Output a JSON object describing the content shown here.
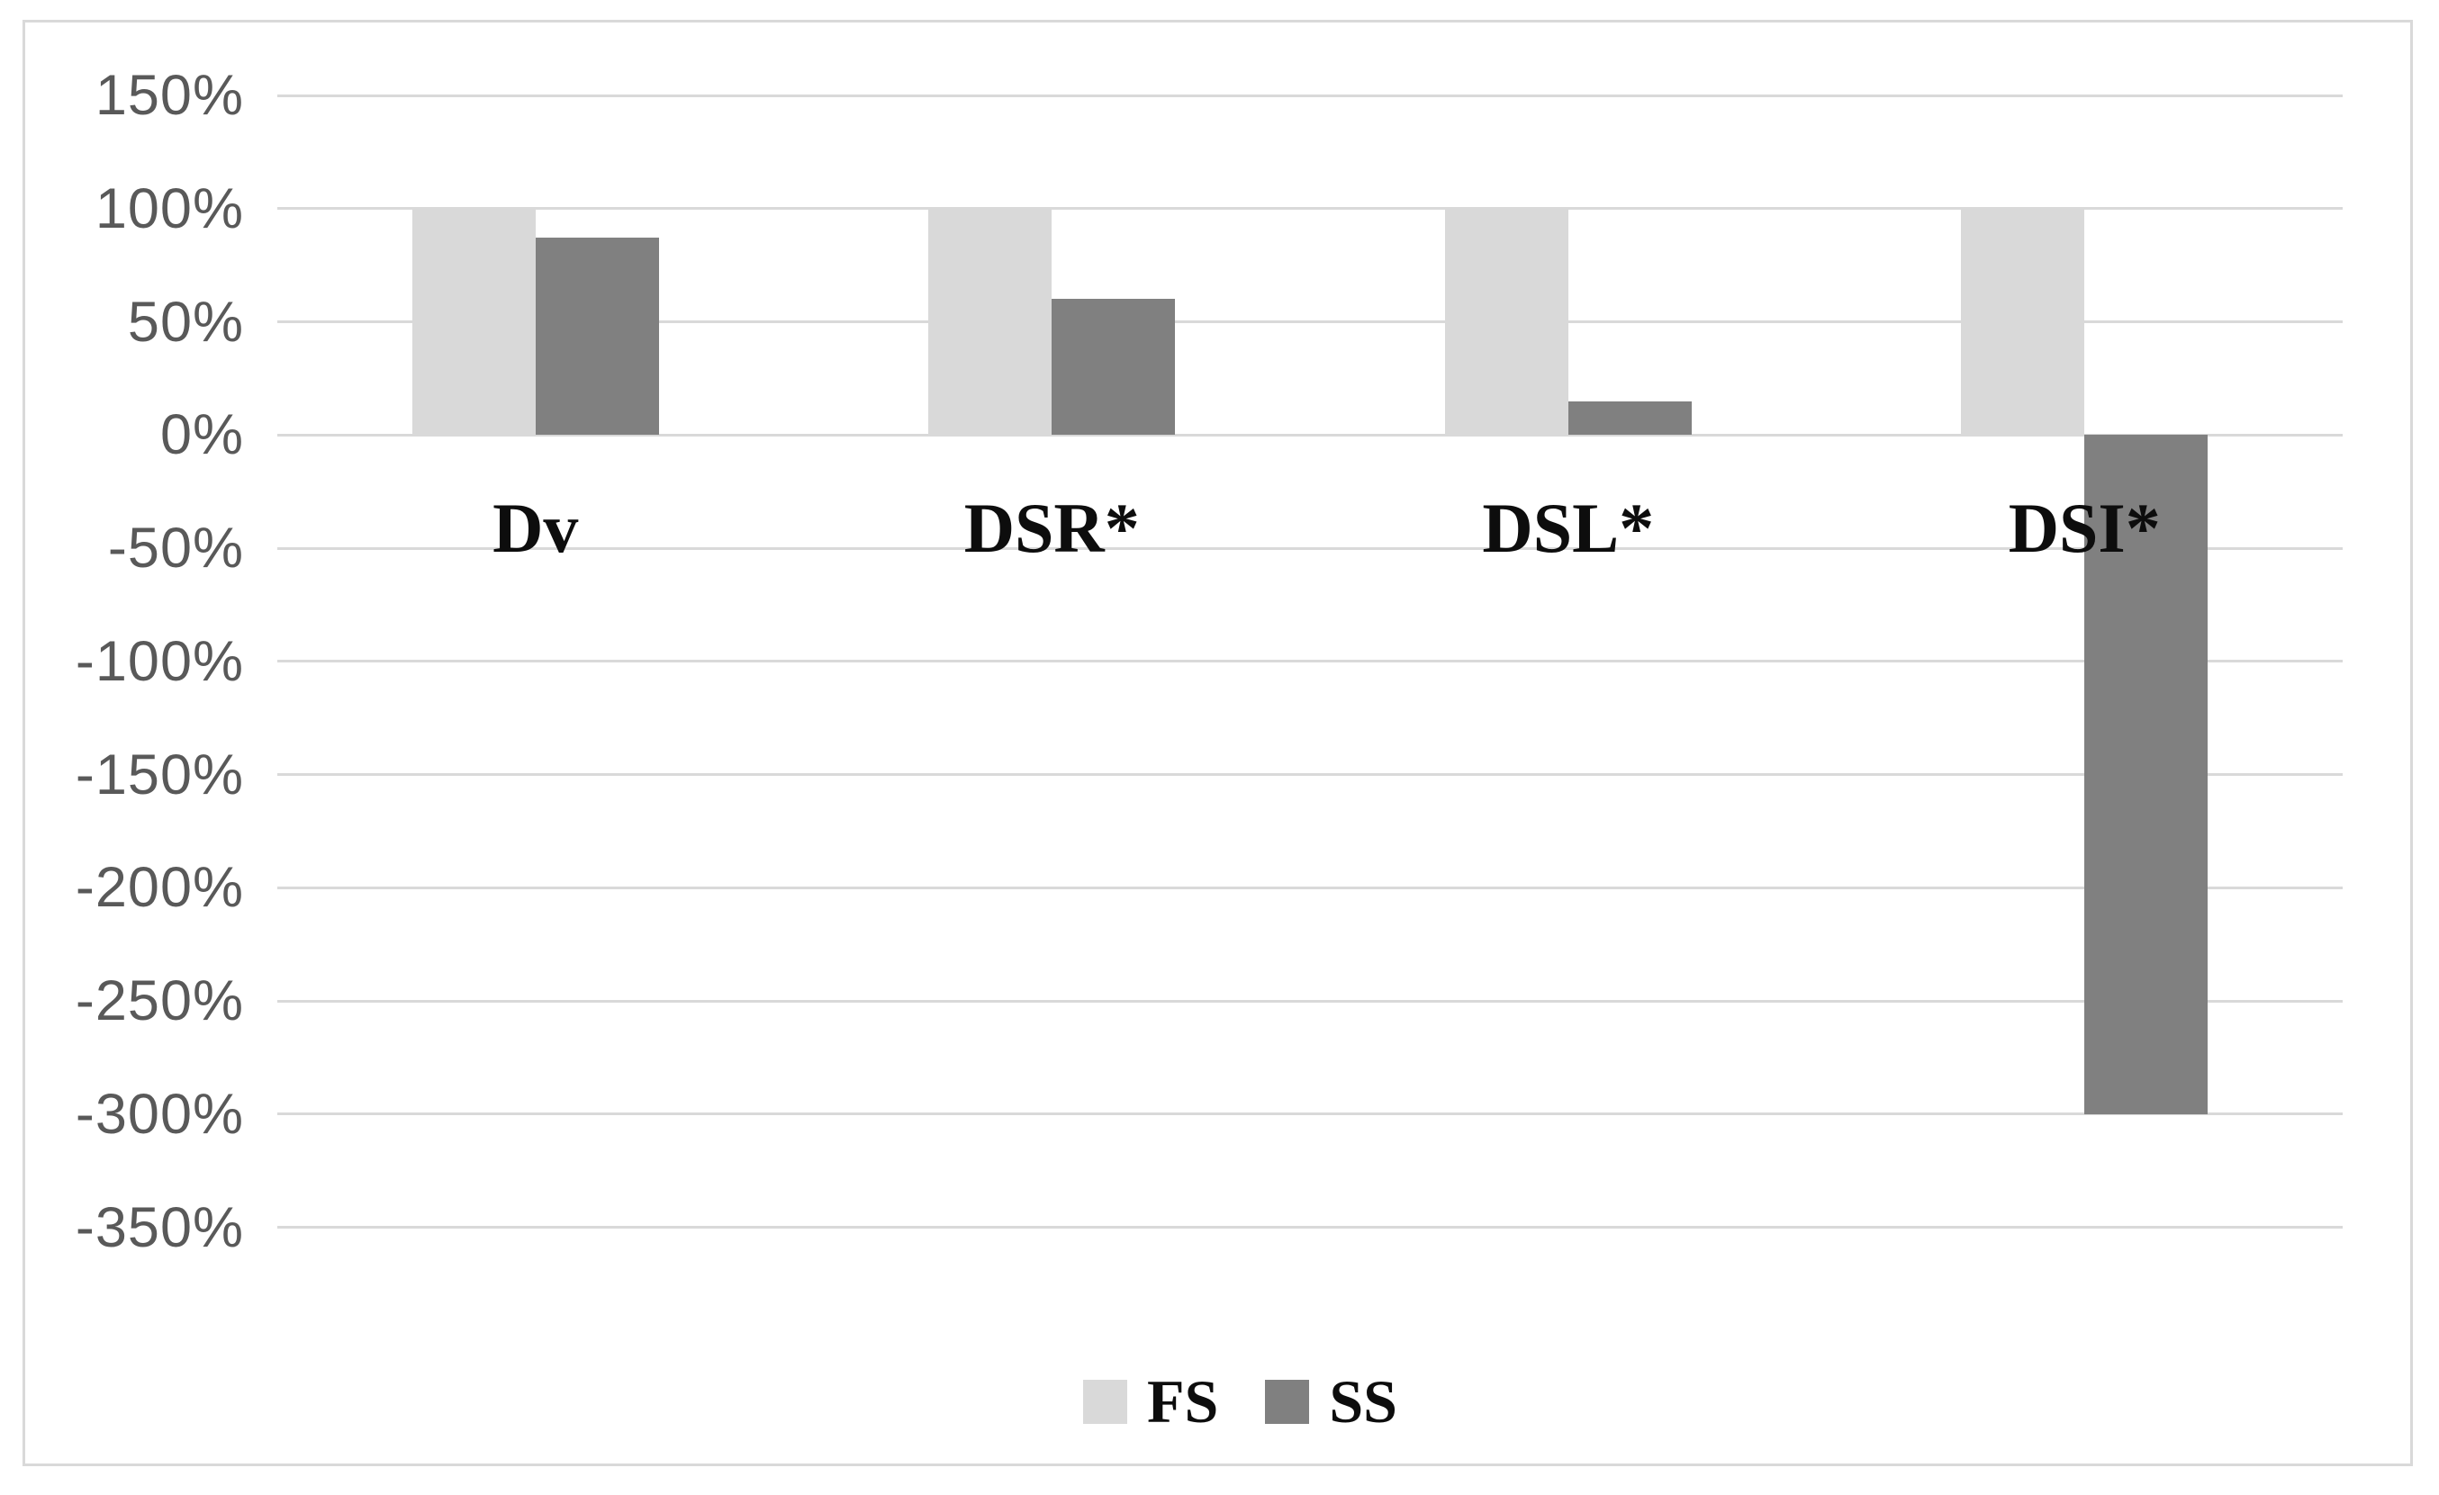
{
  "chart_data": {
    "type": "bar",
    "title": "",
    "xlabel": "",
    "ylabel": "",
    "categories": [
      "Dv",
      "DSR*",
      "DSL*",
      "DSI*"
    ],
    "series": [
      {
        "name": "FS",
        "color": "#d9d9d9",
        "values": [
          100,
          100,
          100,
          100
        ]
      },
      {
        "name": "SS",
        "color": "#808080",
        "values": [
          87,
          60,
          15,
          -300
        ]
      }
    ],
    "value_unit": "%",
    "y_ticks": [
      "150%",
      "100%",
      "50%",
      "0%",
      "-50%",
      "-100%",
      "-150%",
      "-200%",
      "-250%",
      "-300%",
      "-350%"
    ],
    "y_tick_values": [
      150,
      100,
      50,
      0,
      -50,
      -100,
      -150,
      -200,
      -250,
      -300,
      -350
    ],
    "ylim": [
      -350,
      150
    ],
    "grid": true,
    "legend_position": "bottom",
    "colors": {
      "gridline": "#d9d9d9",
      "frame_border": "#d9d9d9",
      "tick_text": "#595959",
      "label_text": "#0d0d0d",
      "background": "#ffffff"
    }
  }
}
